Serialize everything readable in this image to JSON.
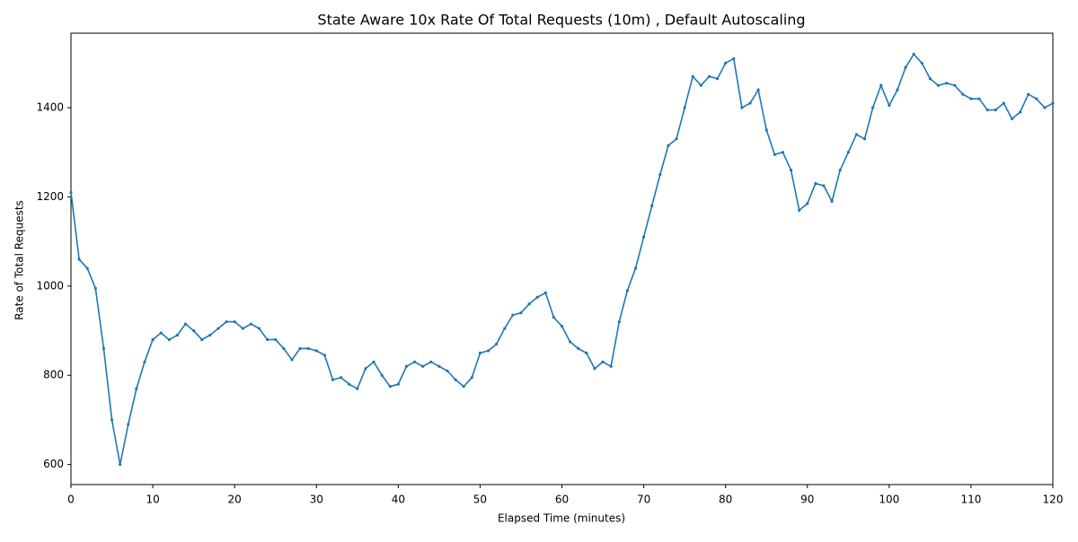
{
  "chart_data": {
    "type": "line",
    "title": "State Aware 10x Rate Of Total Requests (10m) , Default Autoscaling",
    "x_label": "Elapsed Time (minutes)",
    "y_label": "Rate of Total Requests",
    "x": [
      0,
      1,
      2,
      3,
      4,
      5,
      6,
      7,
      8,
      9,
      10,
      11,
      12,
      13,
      14,
      15,
      16,
      17,
      18,
      19,
      20,
      21,
      22,
      23,
      24,
      25,
      26,
      27,
      28,
      29,
      30,
      31,
      32,
      33,
      34,
      35,
      36,
      37,
      38,
      39,
      40,
      41,
      42,
      43,
      44,
      45,
      46,
      47,
      48,
      49,
      50,
      51,
      52,
      53,
      54,
      55,
      56,
      57,
      58,
      59,
      60,
      61,
      62,
      63,
      64,
      65,
      66,
      67,
      68,
      69,
      70,
      71,
      72,
      73,
      74,
      75,
      76,
      77,
      78,
      79,
      80,
      81,
      82,
      83,
      84,
      85,
      86,
      87,
      88,
      89,
      90,
      91,
      92,
      93,
      94,
      95,
      96,
      97,
      98,
      99,
      100,
      101,
      102,
      103,
      104,
      105,
      106,
      107,
      108,
      109,
      110,
      111,
      112,
      113,
      114,
      115,
      116,
      117,
      118,
      119,
      120
    ],
    "series": [
      {
        "name": "Rate of Total Requests",
        "color": "#1f77b4",
        "values": [
          1210,
          1060,
          1040,
          995,
          860,
          700,
          600,
          690,
          770,
          830,
          880,
          895,
          880,
          890,
          915,
          900,
          880,
          890,
          905,
          920,
          920,
          905,
          915,
          905,
          880,
          880,
          860,
          835,
          860,
          860,
          855,
          845,
          790,
          795,
          780,
          770,
          815,
          830,
          800,
          775,
          780,
          820,
          830,
          820,
          830,
          820,
          810,
          790,
          775,
          795,
          850,
          855,
          870,
          905,
          935,
          940,
          960,
          975,
          985,
          930,
          910,
          875,
          860,
          850,
          815,
          830,
          820,
          920,
          990,
          1040,
          1110,
          1180,
          1250,
          1315,
          1330,
          1400,
          1470,
          1450,
          1470,
          1465,
          1500,
          1510,
          1400,
          1410,
          1440,
          1350,
          1295,
          1300,
          1260,
          1170,
          1185,
          1230,
          1225,
          1190,
          1260,
          1300,
          1340,
          1330,
          1400,
          1450,
          1405,
          1440,
          1490,
          1520,
          1500,
          1465,
          1450,
          1455,
          1450,
          1430,
          1420,
          1420,
          1395,
          1395,
          1410,
          1375,
          1390,
          1430,
          1420,
          1400,
          1410
        ]
      }
    ],
    "xlim": [
      0,
      120
    ],
    "ylim": [
      555,
      1567
    ],
    "xticks": [
      0,
      10,
      20,
      30,
      40,
      50,
      60,
      70,
      80,
      90,
      100,
      110,
      120
    ],
    "yticks": [
      600,
      800,
      1000,
      1200,
      1400
    ]
  }
}
